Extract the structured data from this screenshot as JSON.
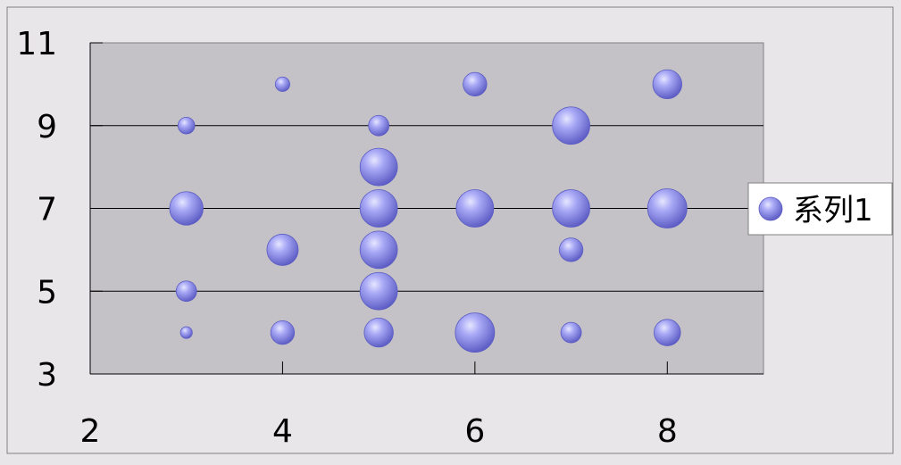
{
  "chart_data": {
    "type": "bubble",
    "title": "",
    "xlabel": "",
    "ylabel": "",
    "xlim": [
      2,
      9
    ],
    "ylim": [
      3,
      11
    ],
    "x_ticks": [
      2,
      4,
      6,
      8
    ],
    "y_ticks": [
      3,
      5,
      7,
      9,
      11
    ],
    "x_tick_labels": [
      "2",
      "4",
      "6",
      "8"
    ],
    "y_tick_labels": [
      "3",
      "5",
      "7",
      "9",
      "11"
    ],
    "grid": "horizontal",
    "legend": "right",
    "series": [
      {
        "name": "系列1",
        "color": "#9a9af2",
        "points": [
          {
            "x": 3,
            "y": 9,
            "size": 1
          },
          {
            "x": 3,
            "y": 7,
            "size": 4
          },
          {
            "x": 3,
            "y": 5,
            "size": 1.5
          },
          {
            "x": 3,
            "y": 4,
            "size": 0.5
          },
          {
            "x": 4,
            "y": 10,
            "size": 0.75
          },
          {
            "x": 4,
            "y": 6,
            "size": 3.5
          },
          {
            "x": 4,
            "y": 4,
            "size": 2
          },
          {
            "x": 5,
            "y": 9,
            "size": 1.5
          },
          {
            "x": 5,
            "y": 8,
            "size": 5
          },
          {
            "x": 5,
            "y": 7,
            "size": 5
          },
          {
            "x": 5,
            "y": 6,
            "size": 5
          },
          {
            "x": 5,
            "y": 5,
            "size": 5
          },
          {
            "x": 5,
            "y": 4,
            "size": 3
          },
          {
            "x": 6,
            "y": 10,
            "size": 2
          },
          {
            "x": 6,
            "y": 7,
            "size": 5
          },
          {
            "x": 6,
            "y": 4,
            "size": 5.5
          },
          {
            "x": 7,
            "y": 9,
            "size": 5
          },
          {
            "x": 7,
            "y": 7,
            "size": 5
          },
          {
            "x": 7,
            "y": 6,
            "size": 2
          },
          {
            "x": 7,
            "y": 4,
            "size": 1.5
          },
          {
            "x": 8,
            "y": 10,
            "size": 3
          },
          {
            "x": 8,
            "y": 7,
            "size": 5.5
          },
          {
            "x": 8,
            "y": 4,
            "size": 2.5
          }
        ]
      }
    ]
  }
}
